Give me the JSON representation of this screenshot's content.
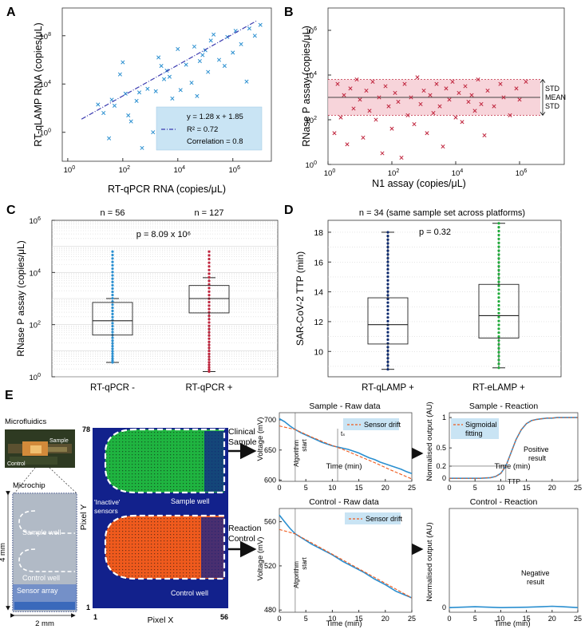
{
  "colors": {
    "blue": "#2a8fd0",
    "red": "#c0263e",
    "navy": "#0d2a6e",
    "green": "#1faa3a",
    "lightblue": "#c9e4f4",
    "pink": "#f6cdd3",
    "orange": "#ef5a1d",
    "dkblue": "#12218c"
  },
  "panel_letters": {
    "a": "A",
    "b": "B",
    "c": "C",
    "d": "D",
    "e": "E"
  },
  "chart_data": [
    {
      "id": "A",
      "type": "scatter",
      "xlabel": "RT-qPCR RNA (copies/μL)",
      "ylabel": "RT-qLAMP RNA (copies/μL)",
      "xticks": [
        "10^0",
        "10^2",
        "10^4",
        "10^6"
      ],
      "yticks": [
        "10^0",
        "10^4",
        "10^8"
      ],
      "xlim_log10": [
        -0.2,
        7.4
      ],
      "ylim_log10": [
        -2.4,
        10.3
      ],
      "legend": {
        "equation": "y = 1.28 x + 1.85",
        "r2": "R² = 0.72",
        "correlation": "Correlation = 0.8"
      },
      "fit_line": {
        "slope": 1.28,
        "intercept": 1.85
      },
      "points_log10": [
        [
          1.1,
          2.3
        ],
        [
          1.3,
          1.6
        ],
        [
          1.5,
          -0.5
        ],
        [
          1.6,
          2.7
        ],
        [
          1.7,
          2.2
        ],
        [
          1.9,
          4.8
        ],
        [
          2.0,
          5.8
        ],
        [
          2.1,
          3.2
        ],
        [
          2.2,
          1.4
        ],
        [
          2.3,
          0.9
        ],
        [
          2.5,
          2.6
        ],
        [
          2.7,
          -1.3
        ],
        [
          2.9,
          3.6
        ],
        [
          3.1,
          0.0
        ],
        [
          3.3,
          6.2
        ],
        [
          3.5,
          4.4
        ],
        [
          3.6,
          5.1
        ],
        [
          3.8,
          2.8
        ],
        [
          4.0,
          6.9
        ],
        [
          4.1,
          3.5
        ],
        [
          4.2,
          -0.6
        ],
        [
          4.3,
          5.6
        ],
        [
          4.5,
          4.1
        ],
        [
          4.6,
          7.1
        ],
        [
          4.7,
          3.0
        ],
        [
          4.9,
          6.4
        ],
        [
          5.0,
          6.8
        ],
        [
          5.1,
          5.0
        ],
        [
          5.2,
          7.6
        ],
        [
          5.3,
          8.1
        ],
        [
          5.5,
          6.0
        ],
        [
          5.7,
          5.5
        ],
        [
          5.8,
          7.9
        ],
        [
          6.0,
          6.6
        ],
        [
          6.1,
          8.4
        ],
        [
          6.3,
          7.3
        ],
        [
          6.5,
          4.2
        ],
        [
          6.6,
          8.6
        ],
        [
          6.8,
          8.0
        ],
        [
          7.0,
          8.9
        ],
        [
          3.2,
          3.4
        ],
        [
          3.4,
          5.5
        ],
        [
          2.6,
          3.3
        ],
        [
          4.8,
          5.9
        ],
        [
          3.7,
          4.6
        ]
      ]
    },
    {
      "id": "B",
      "type": "scatter",
      "xlabel": "N1 assay (copies/μL)",
      "ylabel": "RNase P assay (copies/μL)",
      "xticks": [
        "10^0",
        "10^2",
        "10^4",
        "10^6"
      ],
      "yticks": [
        "10^0",
        "10^2",
        "10^4",
        "10^6"
      ],
      "xlim_log10": [
        0,
        7.4
      ],
      "ylim_log10": [
        0,
        7
      ],
      "band_log10": {
        "mean": 3.0,
        "upper": 3.8,
        "lower": 2.2
      },
      "annotations": [
        "STD",
        "MEAN",
        "STD"
      ],
      "points_log10": [
        [
          0.2,
          1.4
        ],
        [
          0.3,
          3.6
        ],
        [
          0.4,
          2.1
        ],
        [
          0.5,
          3.1
        ],
        [
          0.6,
          0.9
        ],
        [
          0.7,
          3.4
        ],
        [
          0.8,
          2.5
        ],
        [
          0.9,
          3.8
        ],
        [
          1.0,
          2.9
        ],
        [
          1.1,
          1.2
        ],
        [
          1.2,
          3.3
        ],
        [
          1.3,
          2.4
        ],
        [
          1.4,
          3.7
        ],
        [
          1.5,
          2.0
        ],
        [
          1.6,
          3.0
        ],
        [
          1.7,
          0.5
        ],
        [
          1.8,
          3.5
        ],
        [
          1.9,
          2.6
        ],
        [
          2.0,
          1.6
        ],
        [
          2.1,
          3.2
        ],
        [
          2.2,
          2.8
        ],
        [
          2.3,
          0.3
        ],
        [
          2.4,
          3.6
        ],
        [
          2.5,
          2.2
        ],
        [
          2.6,
          3.0
        ],
        [
          2.7,
          1.8
        ],
        [
          2.8,
          3.9
        ],
        [
          2.9,
          2.7
        ],
        [
          3.0,
          3.3
        ],
        [
          3.1,
          1.4
        ],
        [
          3.2,
          3.1
        ],
        [
          3.3,
          2.3
        ],
        [
          3.4,
          3.6
        ],
        [
          3.5,
          2.6
        ],
        [
          3.6,
          0.8
        ],
        [
          3.7,
          3.4
        ],
        [
          3.8,
          2.9
        ],
        [
          3.9,
          3.7
        ],
        [
          4.0,
          2.1
        ],
        [
          4.1,
          3.2
        ],
        [
          4.2,
          1.9
        ],
        [
          4.3,
          3.5
        ],
        [
          4.4,
          2.8
        ],
        [
          4.5,
          3.1
        ],
        [
          4.6,
          2.4
        ],
        [
          4.7,
          3.8
        ],
        [
          4.8,
          2.7
        ],
        [
          4.9,
          1.3
        ],
        [
          5.0,
          3.3
        ],
        [
          5.2,
          2.6
        ],
        [
          5.4,
          3.6
        ],
        [
          5.5,
          3.0
        ],
        [
          5.7,
          2.2
        ],
        [
          5.9,
          3.4
        ],
        [
          6.0,
          2.9
        ],
        [
          6.2,
          3.7
        ]
      ]
    },
    {
      "id": "C",
      "type": "box",
      "ylabel": "RNase P assay (copies/μL)",
      "yticks": [
        "10^0",
        "10^2",
        "10^4",
        "10^6"
      ],
      "ylim_log10": [
        0,
        6
      ],
      "groups": [
        {
          "label": "RT-qPCR -",
          "n": "n = 56",
          "min": 0.55,
          "q1": 1.6,
          "median": 2.15,
          "q3": 2.85,
          "max": 3.0,
          "top": 4.8
        },
        {
          "label": "RT-qPCR +",
          "n": "n = 127",
          "min": 0.2,
          "q1": 2.45,
          "median": 3.0,
          "q3": 3.5,
          "max": 3.8,
          "top": 4.8
        }
      ],
      "p_value": "p = 8.09 x 10⁶"
    },
    {
      "id": "D",
      "type": "box",
      "title": "n = 34 (same sample set across platforms)",
      "ylabel": "SAR-CoV-2 TTP (min)",
      "yticks": [
        10,
        12,
        14,
        16,
        18
      ],
      "ylim": [
        8.3,
        18.8
      ],
      "groups": [
        {
          "label": "RT-qLAMP +",
          "min": 8.8,
          "q1": 10.5,
          "median": 11.8,
          "q3": 13.6,
          "max": 18.0
        },
        {
          "label": "RT-eLAMP +",
          "min": 8.9,
          "q1": 10.9,
          "median": 12.4,
          "q3": 14.5,
          "max": 18.6
        }
      ],
      "p_value": "p = 0.32"
    },
    {
      "id": "E-sample-raw",
      "type": "line",
      "title": "Sample - Raw data",
      "xlabel": "Time (min)",
      "ylabel": "Voltage (mV)",
      "xticks": [
        0,
        5,
        10,
        15,
        20,
        25
      ],
      "yticks": [
        600,
        650,
        700
      ],
      "ylim": [
        598,
        712
      ],
      "legend": "Sensor drift",
      "series": [
        {
          "name": "signal",
          "x": [
            0,
            1,
            2,
            3,
            4,
            5,
            6,
            7,
            8,
            9,
            10,
            11,
            12,
            13,
            14,
            15,
            16,
            17,
            18,
            19,
            20,
            21,
            22,
            23,
            24,
            25
          ],
          "y": [
            702,
            697,
            690,
            684,
            679,
            675,
            671,
            667,
            663,
            660,
            657,
            655,
            653,
            651,
            648,
            645,
            641,
            637,
            634,
            630,
            627,
            624,
            621,
            618,
            614,
            611
          ]
        }
      ],
      "drift": {
        "x": [
          0,
          3,
          6,
          9,
          12,
          15,
          18,
          21,
          25
        ],
        "y": [
          690,
          684,
          672,
          661,
          651,
          640,
          629,
          617,
          602
        ]
      },
      "labels": {
        "algorithm": "Algorithm",
        "start": "start",
        "t": "tₛ"
      }
    },
    {
      "id": "E-sample-reaction",
      "type": "line",
      "title": "Sample - Reaction",
      "xlabel": "Time (min)",
      "ylabel": "Normalised output (AU)",
      "xticks": [
        0,
        5,
        10,
        15,
        20,
        25
      ],
      "yticks": [
        0,
        0.2,
        0.5,
        1
      ],
      "ylim": [
        -0.05,
        1.08
      ],
      "legend": [
        "Sigmoidal",
        "fitting"
      ],
      "annotation": [
        "Positive",
        "result"
      ],
      "ttp_label": "TTP",
      "series": [
        {
          "name": "reaction",
          "x": [
            0,
            2,
            4,
            6,
            8,
            9,
            10,
            11,
            12,
            13,
            14,
            15,
            16,
            17,
            18,
            19,
            20,
            21,
            22,
            23,
            24,
            25
          ],
          "y": [
            0,
            0,
            0,
            0,
            0.01,
            0.03,
            0.08,
            0.2,
            0.42,
            0.64,
            0.8,
            0.9,
            0.95,
            0.97,
            0.98,
            0.99,
            0.99,
            1,
            1,
            1,
            1,
            1
          ]
        }
      ]
    },
    {
      "id": "E-control-raw",
      "type": "line",
      "title": "Control - Raw data",
      "xlabel": "Time (min)",
      "ylabel": "Voltage (mV)",
      "xticks": [
        0,
        5,
        10,
        15,
        20,
        25
      ],
      "yticks": [
        480,
        520,
        560
      ],
      "ylim": [
        478,
        572
      ],
      "legend": "Sensor drift",
      "series": [
        {
          "name": "signal",
          "x": [
            0,
            1,
            2,
            3,
            4,
            5,
            6,
            8,
            10,
            12,
            14,
            16,
            18,
            20,
            22,
            25
          ],
          "y": [
            566,
            560,
            554,
            549,
            546,
            543,
            540,
            535,
            530,
            524,
            519,
            514,
            508,
            503,
            497,
            491
          ]
        }
      ],
      "drift": {
        "x": [
          0,
          3,
          25
        ],
        "y": [
          553,
          549,
          491
        ]
      },
      "labels": {
        "algorithm": "Algorithm",
        "start": "start"
      }
    },
    {
      "id": "E-control-reaction",
      "type": "line",
      "title": "Control - Reaction",
      "xlabel": "Time (min)",
      "ylabel": "Normalised output (AU)",
      "xticks": [
        0,
        5,
        10,
        15,
        20,
        25
      ],
      "yticks": [
        0
      ],
      "ylim": [
        -0.05,
        1.08
      ],
      "annotation": [
        "Negative",
        "result"
      ],
      "series": [
        {
          "name": "reaction",
          "x": [
            0,
            5,
            10,
            15,
            18,
            20,
            22,
            25
          ],
          "y": [
            0,
            0.01,
            0,
            0.005,
            0.01,
            0.015,
            0.01,
            0
          ]
        }
      ]
    }
  ],
  "panel_e": {
    "microfluidics": "Microfluidics",
    "microchip": "Microchip",
    "photo_labels": {
      "sample": "Sample",
      "control": "Control"
    },
    "chip_labels": {
      "sample_well": "Sample well",
      "control_well": "Control well",
      "sensor_array": "Sensor array"
    },
    "dims": {
      "height": "4 mm",
      "width": "2 mm"
    },
    "heatmap": {
      "ymax": "78",
      "ymin": "1",
      "xmin": "1",
      "xmax": "56",
      "xlabel": "Pixel X",
      "ylabel": "Pixel Y",
      "inactive": "'Inactive'",
      "sensors": "sensors",
      "sample_well": "Sample well",
      "control_well": "Control well"
    },
    "arrows": {
      "clinical": "Clinical",
      "sample": "Sample",
      "reaction": "Reaction",
      "control": "Control"
    }
  }
}
